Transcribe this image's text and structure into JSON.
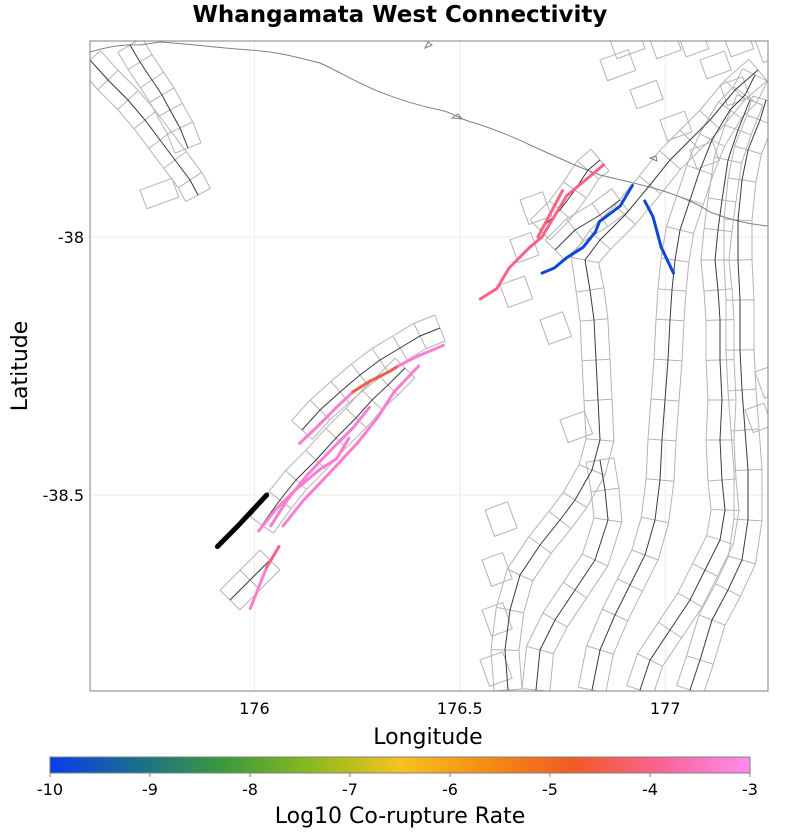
{
  "title": "Whangamata West Connectivity",
  "map": {
    "xlabel": "Longitude",
    "ylabel": "Latitude",
    "xlim": [
      175.6,
      177.25
    ],
    "ylim": [
      -38.88,
      -37.62
    ],
    "x_ticks": [
      {
        "value": 176,
        "label": "176"
      },
      {
        "value": 176.5,
        "label": "176.5"
      },
      {
        "value": 177,
        "label": "177"
      }
    ],
    "y_ticks": [
      {
        "value": -38,
        "label": "-38"
      },
      {
        "value": -38.5,
        "label": "-38.5"
      }
    ],
    "grid": true
  },
  "colorbar": {
    "label": "Log10 Co-rupture Rate",
    "min": -10,
    "max": -3,
    "ticks": [
      {
        "value": -10,
        "label": "-10"
      },
      {
        "value": -9,
        "label": "-9"
      },
      {
        "value": -8,
        "label": "-8"
      },
      {
        "value": -7,
        "label": "-7"
      },
      {
        "value": -6,
        "label": "-6"
      },
      {
        "value": -5,
        "label": "-5"
      },
      {
        "value": -4,
        "label": "-4"
      },
      {
        "value": -3,
        "label": "-3"
      }
    ],
    "colors": [
      "#0a3cf0",
      "#1a6e8c",
      "#3c9a3c",
      "#8cba1e",
      "#f5c31e",
      "#f58c14",
      "#f05a28",
      "#fa6496",
      "#ff8cf0"
    ]
  },
  "colors": {
    "coastline": "#808080",
    "fault_trace": "#3a3a3a",
    "subsection_outline": "#b4b4b4",
    "source_fault": "#000000",
    "grid": "#ebebeb",
    "frame": "#808080"
  },
  "highlighted_faults": [
    {
      "rate": -3.3,
      "line": [
        [
          176.11,
          -38.4
        ],
        [
          176.15,
          -38.37
        ],
        [
          176.2,
          -38.33
        ],
        [
          176.24,
          -38.3
        ]
      ]
    },
    {
      "rate": -4.5,
      "line": [
        [
          176.24,
          -38.3
        ],
        [
          176.28,
          -38.28
        ],
        [
          176.33,
          -38.26
        ],
        [
          176.35,
          -38.25
        ]
      ]
    },
    {
      "rate": -3.3,
      "line": [
        [
          176.35,
          -38.25
        ],
        [
          176.4,
          -38.23
        ],
        [
          176.46,
          -38.21
        ]
      ]
    },
    {
      "rate": -3.3,
      "line": [
        [
          176.04,
          -38.56
        ],
        [
          176.08,
          -38.51
        ],
        [
          176.13,
          -38.46
        ],
        [
          176.19,
          -38.41
        ],
        [
          176.24,
          -38.37
        ],
        [
          176.28,
          -38.33
        ]
      ]
    },
    {
      "rate": -3.3,
      "line": [
        [
          176.01,
          -38.57
        ],
        [
          176.05,
          -38.53
        ],
        [
          176.1,
          -38.49
        ],
        [
          176.16,
          -38.45
        ],
        [
          176.2,
          -38.43
        ],
        [
          176.23,
          -38.39
        ]
      ]
    },
    {
      "rate": -3.3,
      "line": [
        [
          176.07,
          -38.56
        ],
        [
          176.12,
          -38.51
        ],
        [
          176.18,
          -38.46
        ],
        [
          176.25,
          -38.4
        ],
        [
          176.3,
          -38.35
        ],
        [
          176.34,
          -38.3
        ],
        [
          176.4,
          -38.25
        ]
      ]
    },
    {
      "rate": -3.3,
      "line": [
        [
          175.99,
          -38.72
        ],
        [
          176.03,
          -38.64
        ]
      ]
    },
    {
      "rate": -4.0,
      "line": [
        [
          176.03,
          -38.64
        ],
        [
          176.06,
          -38.6
        ]
      ]
    },
    {
      "rate": -4.0,
      "line": [
        [
          176.55,
          -38.12
        ],
        [
          176.59,
          -38.1
        ],
        [
          176.62,
          -38.06
        ],
        [
          176.67,
          -38.02
        ],
        [
          176.7,
          -38.0
        ],
        [
          176.73,
          -37.96
        ],
        [
          176.76,
          -37.92
        ],
        [
          176.79,
          -37.9
        ],
        [
          176.82,
          -37.88
        ],
        [
          176.85,
          -37.86
        ]
      ]
    },
    {
      "rate": -4.0,
      "line": [
        [
          176.69,
          -38.0
        ],
        [
          176.71,
          -37.97
        ],
        [
          176.73,
          -37.94
        ],
        [
          176.75,
          -37.91
        ]
      ]
    },
    {
      "rate": -9.8,
      "line": [
        [
          176.7,
          -38.07
        ],
        [
          176.73,
          -38.06
        ],
        [
          176.76,
          -38.04
        ],
        [
          176.8,
          -38.02
        ],
        [
          176.83,
          -37.99
        ],
        [
          176.84,
          -37.97
        ],
        [
          176.89,
          -37.94
        ],
        [
          176.92,
          -37.9
        ]
      ]
    },
    {
      "rate": -9.8,
      "line": [
        [
          176.95,
          -37.93
        ],
        [
          176.97,
          -37.96
        ],
        [
          176.99,
          -38.02
        ],
        [
          177.02,
          -38.07
        ]
      ]
    }
  ],
  "source_fault": {
    "line": [
      [
        175.91,
        -38.6
      ],
      [
        175.96,
        -38.56
      ],
      [
        176.03,
        -38.5
      ]
    ]
  }
}
